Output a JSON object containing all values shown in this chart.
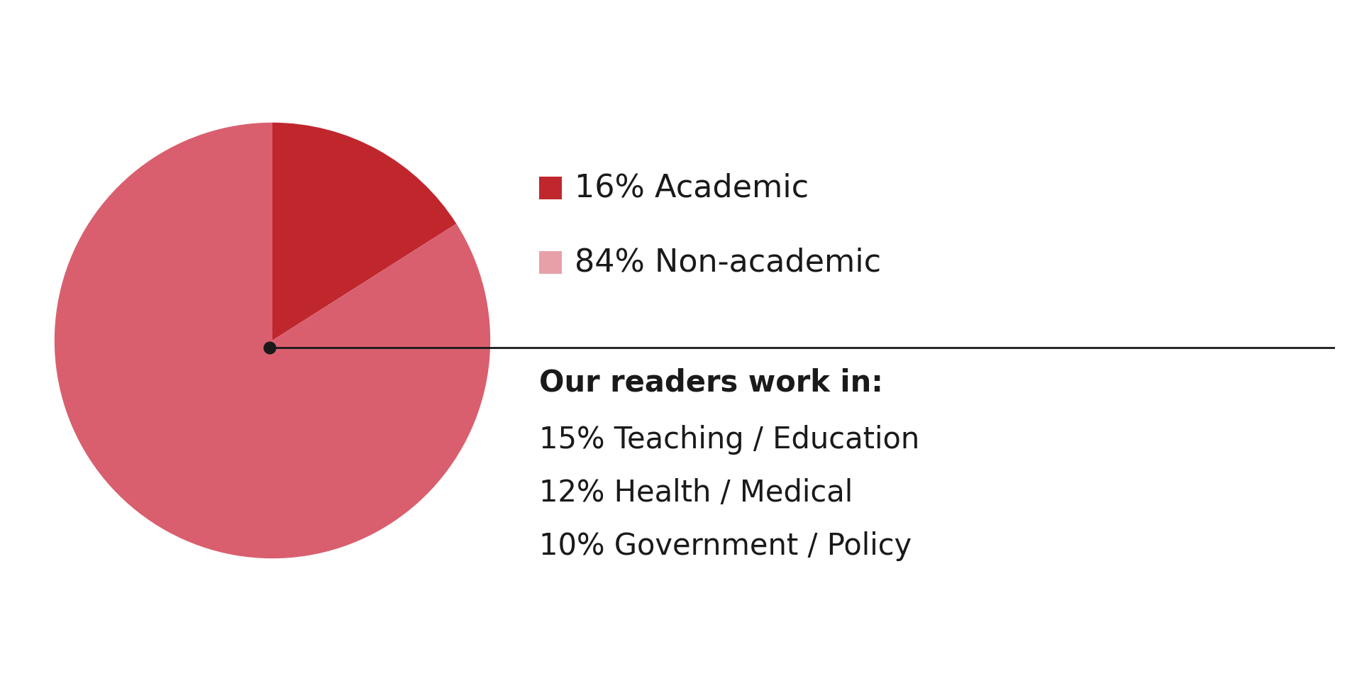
{
  "slices": [
    16,
    84
  ],
  "colors": [
    "#c0272d",
    "#d95f6e"
  ],
  "legend_colors": [
    "#c0272d",
    "#e8a0a8"
  ],
  "legend_labels": [
    "16% Academic",
    "84% Non-academic"
  ],
  "readers_title": "Our readers work in:",
  "readers_lines": [
    "15% Teaching / Education",
    "12% Health / Medical",
    "10% Government / Policy"
  ],
  "background_color": "#ffffff",
  "start_angle": 90
}
